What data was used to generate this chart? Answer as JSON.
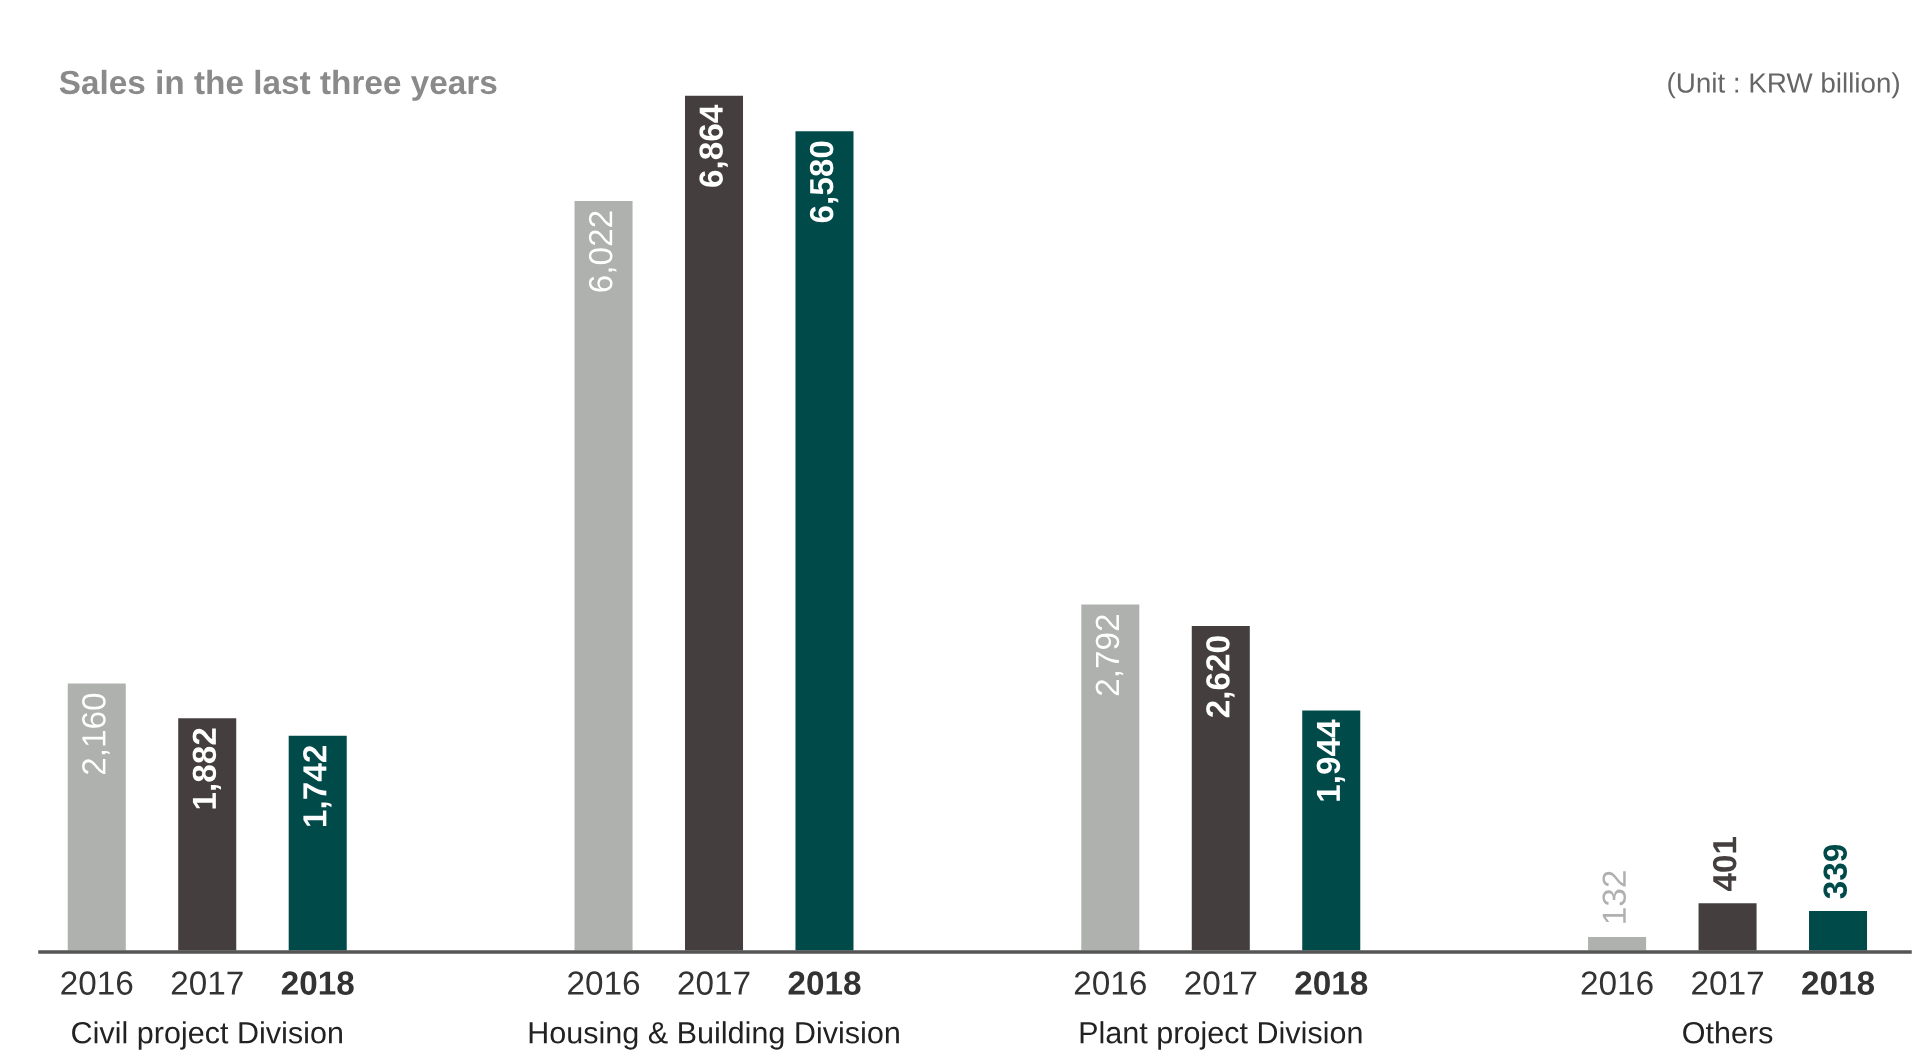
{
  "chart_data": {
    "type": "bar",
    "title": "Sales in the last three years",
    "annotations": [
      "(Unit : KRW billion)"
    ],
    "categories": [
      "Civil project Division",
      "Housing & Building Division",
      "Plant project Division",
      "Others"
    ],
    "series": [
      {
        "name": "2016",
        "color": "#aeb1ae",
        "values": [
          2160,
          6022,
          2792,
          132
        ],
        "value_labels": [
          "2,160",
          "6,022",
          "2,792",
          "132"
        ]
      },
      {
        "name": "2017",
        "color": "#443f3e",
        "values": [
          1882,
          6864,
          2620,
          401
        ],
        "value_labels": [
          "1,882",
          "6,864",
          "2,620",
          "401"
        ]
      },
      {
        "name": "2018",
        "color": "#004a4a",
        "values": [
          1742,
          6580,
          1944,
          339
        ],
        "value_labels": [
          "1,742",
          "6,580",
          "1,944",
          "339"
        ]
      }
    ],
    "legend": false
  }
}
